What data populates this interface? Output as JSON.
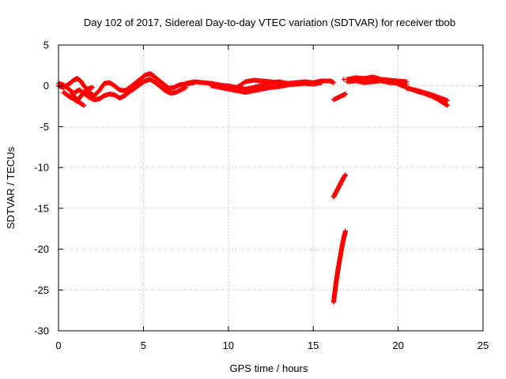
{
  "chart_data": {
    "type": "scatter",
    "title": "Day 102 of 2017, Sidereal Day-to-day VTEC variation (SDTVAR) for receiver tbob",
    "xlabel": "GPS time / hours",
    "ylabel": "SDTVAR / TECUs",
    "xlim": [
      0,
      25
    ],
    "ylim": [
      -30,
      5
    ],
    "xticks": [
      0,
      5,
      10,
      15,
      20,
      25
    ],
    "yticks": [
      -30,
      -25,
      -20,
      -15,
      -10,
      -5,
      0,
      5
    ],
    "grid": true,
    "marker": "plus",
    "series": [
      {
        "name": "SDTVAR",
        "color": "#ff0000",
        "segments": [
          {
            "x": [
              0.0,
              0.3,
              0.6,
              0.9,
              1.1,
              1.3,
              1.5,
              1.8,
              2.1,
              2.4,
              2.7,
              3.0,
              3.3,
              3.6,
              3.9,
              4.2,
              4.5,
              4.8,
              5.1,
              5.4,
              5.6,
              5.9,
              6.2,
              6.5,
              6.8,
              7.1,
              7.4,
              7.7,
              8.0
            ],
            "y": [
              0.0,
              -0.2,
              0.2,
              0.7,
              0.9,
              0.6,
              0.0,
              -0.8,
              -1.2,
              -0.6,
              0.3,
              0.4,
              0.0,
              -0.5,
              -0.6,
              -0.2,
              0.3,
              0.8,
              1.3,
              1.5,
              1.2,
              0.7,
              0.2,
              -0.3,
              -0.2,
              0.1,
              0.2,
              0.3,
              0.4
            ]
          },
          {
            "x": [
              0.0,
              0.3,
              0.6,
              0.9,
              1.2,
              1.5,
              1.8,
              2.1,
              2.4,
              2.7,
              3.0,
              3.3,
              3.6,
              3.9,
              4.2,
              4.5,
              4.8,
              5.1,
              5.4,
              5.7,
              6.0,
              6.3,
              6.6,
              6.9,
              7.2,
              7.5
            ],
            "y": [
              0.3,
              0.1,
              -0.4,
              -0.9,
              -0.5,
              -0.9,
              -1.4,
              -1.7,
              -1.6,
              -1.2,
              -1.0,
              -1.1,
              -1.5,
              -1.2,
              -0.7,
              -0.3,
              0.2,
              0.6,
              0.8,
              0.4,
              -0.1,
              -0.6,
              -0.9,
              -0.8,
              -0.5,
              -0.2
            ]
          },
          {
            "x": [
              0.3,
              0.5,
              0.7,
              0.9,
              1.1,
              1.3,
              1.5,
              1.7,
              2.0
            ],
            "y": [
              -0.8,
              -1.1,
              -1.4,
              -1.6,
              -1.9,
              -1.3,
              -0.8,
              -0.4,
              -0.2
            ]
          },
          {
            "x": [
              0.8,
              1.0,
              1.2,
              1.5
            ],
            "y": [
              -0.9,
              -1.5,
              -2.0,
              -2.4
            ]
          },
          {
            "x": [
              7.5,
              8.0,
              8.5,
              9.0,
              9.5,
              10.0,
              10.5,
              11.0,
              11.5,
              12.0,
              12.5,
              13.0,
              13.5,
              14.0,
              14.5,
              15.0,
              15.5,
              16.0,
              16.2
            ],
            "y": [
              0.3,
              0.5,
              0.4,
              0.3,
              0.1,
              0.0,
              -0.2,
              -0.4,
              -0.2,
              0.1,
              0.4,
              0.5,
              0.3,
              0.4,
              0.5,
              0.4,
              0.6,
              0.6,
              0.4
            ]
          },
          {
            "x": [
              9.0,
              9.5,
              10.0,
              10.5,
              11.0,
              11.5,
              12.0,
              12.5,
              13.0,
              13.5,
              14.0,
              14.5,
              15.0,
              15.5
            ],
            "y": [
              0.0,
              -0.2,
              -0.4,
              -0.6,
              -0.8,
              -0.6,
              -0.4,
              -0.2,
              -0.1,
              0.1,
              0.2,
              0.3,
              0.2,
              0.4
            ]
          },
          {
            "x": [
              10.5,
              11.0,
              11.5,
              12.0,
              12.5,
              13.0,
              13.5
            ],
            "y": [
              -0.2,
              0.5,
              0.7,
              0.6,
              0.5,
              0.3,
              0.2
            ]
          },
          {
            "x": [
              16.8
            ],
            "y": [
              0.8
            ]
          },
          {
            "x": [
              16.2,
              16.4,
              16.6,
              16.8,
              16.9
            ],
            "y": [
              -1.7,
              -1.5,
              -1.3,
              -1.1,
              -1.0
            ]
          },
          {
            "x": [
              16.2,
              16.3,
              16.4,
              16.5,
              16.6,
              16.7,
              16.8,
              16.9
            ],
            "y": [
              -13.6,
              -13.2,
              -12.8,
              -12.4,
              -12.0,
              -11.6,
              -11.2,
              -10.9
            ]
          },
          {
            "x": [
              16.2,
              16.25,
              16.3,
              16.35,
              16.4,
              16.45,
              16.5,
              16.55,
              16.6,
              16.65,
              16.7,
              16.75,
              16.8,
              16.85,
              16.9
            ],
            "y": [
              -26.5,
              -25.6,
              -24.8,
              -24.0,
              -23.3,
              -22.6,
              -22.0,
              -21.4,
              -20.8,
              -20.2,
              -19.6,
              -19.1,
              -18.6,
              -18.2,
              -17.8
            ]
          },
          {
            "x": [
              17.0,
              17.5,
              18.0,
              18.5,
              19.0,
              19.5,
              20.0,
              20.5
            ],
            "y": [
              0.8,
              1.0,
              0.9,
              1.1,
              0.8,
              0.7,
              0.6,
              0.5
            ]
          },
          {
            "x": [
              17.0,
              17.5,
              18.0,
              18.5,
              19.0,
              19.5,
              20.0,
              20.5
            ],
            "y": [
              0.5,
              0.6,
              0.4,
              0.5,
              0.6,
              0.4,
              0.3,
              0.2
            ]
          },
          {
            "x": [
              20.0,
              20.5,
              21.0,
              21.5,
              22.0,
              22.3,
              22.6,
              22.9
            ],
            "y": [
              0.2,
              -0.2,
              -0.6,
              -0.9,
              -1.3,
              -1.6,
              -2.0,
              -2.4
            ]
          },
          {
            "x": [
              20.5,
              21.0,
              21.5,
              22.0,
              22.5,
              22.9
            ],
            "y": [
              -0.3,
              -0.5,
              -0.8,
              -1.1,
              -1.5,
              -1.8
            ]
          }
        ]
      }
    ]
  }
}
